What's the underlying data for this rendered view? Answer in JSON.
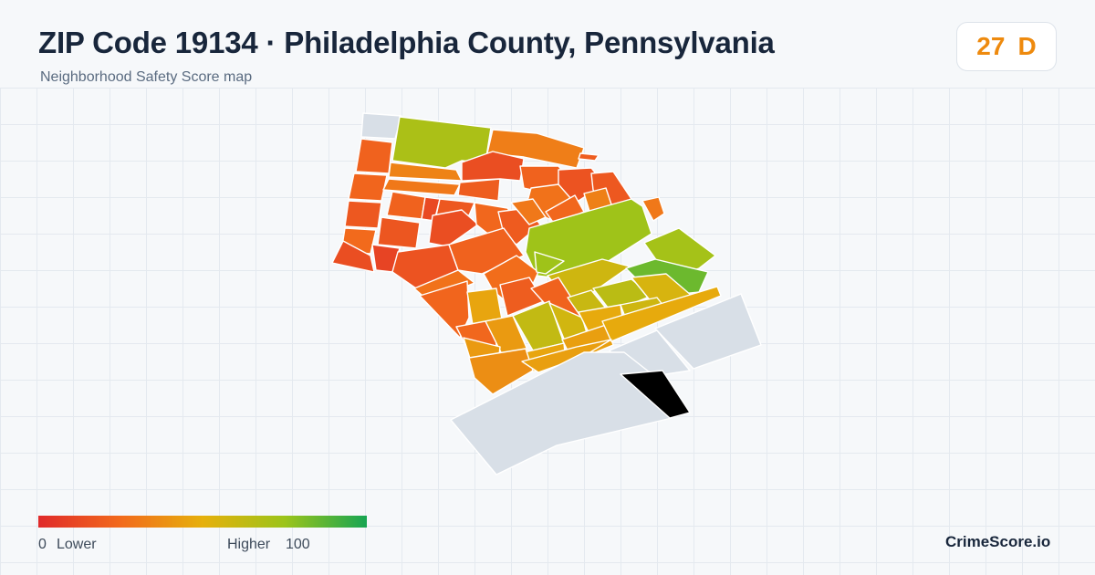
{
  "header": {
    "title": "ZIP Code 19134 · Philadelphia County, Pennsylvania",
    "subtitle": "Neighborhood Safety Score map"
  },
  "score": {
    "value": "27",
    "grade": "D",
    "color": "#ee8a0e"
  },
  "legend": {
    "min_value": "0",
    "min_label": "Lower",
    "max_label": "Higher",
    "max_value": "100",
    "color_stops": [
      "#e02a2a",
      "#f26a1c",
      "#e6b00c",
      "#9cc41a",
      "#17a552"
    ]
  },
  "brand": "CrimeScore.io",
  "map": {
    "no_data_color": "#d8dfe7",
    "tiles": [
      {
        "name": "n-outside-1",
        "score": null
      },
      {
        "name": "n-top-green",
        "score": 70
      },
      {
        "name": "n-top-right-orange",
        "score": 32
      },
      {
        "name": "n-top-right-sliver",
        "score": 20
      },
      {
        "name": "n-left-col-1",
        "score": 22
      },
      {
        "name": "n-left-col-2",
        "score": 23
      },
      {
        "name": "n-left-col-3",
        "score": 18
      },
      {
        "name": "n-left-col-4",
        "score": 25
      },
      {
        "name": "n-left-wedge",
        "score": 14
      },
      {
        "name": "n-top-strip-a",
        "score": 34
      },
      {
        "name": "n-top-strip-b",
        "score": 30
      },
      {
        "name": "n-r2-c1",
        "score": 22
      },
      {
        "name": "n-r2-c2",
        "score": 12
      },
      {
        "name": "n-r2-c3",
        "score": 18
      },
      {
        "name": "n-r2-c4",
        "score": 20
      },
      {
        "name": "n-r2-c5",
        "score": 14
      },
      {
        "name": "n-r2-c6",
        "score": 22
      },
      {
        "name": "n-r2-c7",
        "score": 16
      },
      {
        "name": "n-r2-c8",
        "score": 18
      },
      {
        "name": "n-r2-c9",
        "score": 28
      },
      {
        "name": "n-r3-c1",
        "score": 17
      },
      {
        "name": "n-r3-c2",
        "score": 10
      },
      {
        "name": "n-r3-c3",
        "score": 14
      },
      {
        "name": "n-r3-c4",
        "score": 24
      },
      {
        "name": "n-r3-c5",
        "score": 19
      },
      {
        "name": "n-r3-c6",
        "score": 30
      },
      {
        "name": "n-r3-c7",
        "score": 24
      },
      {
        "name": "n-r3-c8",
        "score": 33
      },
      {
        "name": "n-r3-c9",
        "score": 74
      },
      {
        "name": "n-right-orange",
        "score": 30
      },
      {
        "name": "n-right-green",
        "score": 72
      },
      {
        "name": "n-r4-c1",
        "score": 16
      },
      {
        "name": "n-r4-c2",
        "score": 22
      },
      {
        "name": "n-r4-c3",
        "score": 28
      },
      {
        "name": "n-r4-c4",
        "score": 26
      },
      {
        "name": "n-r4-c5",
        "score": 74
      },
      {
        "name": "n-r4-c6",
        "score": 58
      },
      {
        "name": "n-r4-c7",
        "score": 84
      },
      {
        "name": "n-r5-c1",
        "score": 23
      },
      {
        "name": "n-r5-c2",
        "score": 46
      },
      {
        "name": "n-r5-c3",
        "score": 20
      },
      {
        "name": "n-r5-c4",
        "score": 22
      },
      {
        "name": "n-r5-c5",
        "score": 60
      },
      {
        "name": "n-r5-c6",
        "score": 65
      },
      {
        "name": "n-r5-c7",
        "score": 55
      },
      {
        "name": "n-r6-c1",
        "score": 24
      },
      {
        "name": "n-r6-c2",
        "score": 42
      },
      {
        "name": "n-r6-c3",
        "score": 62
      },
      {
        "name": "n-r6-c4",
        "score": 57
      },
      {
        "name": "n-r6-c5",
        "score": 48
      },
      {
        "name": "n-r6-c6",
        "score": 58
      },
      {
        "name": "n-r7-c1",
        "score": 42
      },
      {
        "name": "n-r7-c2",
        "score": 46
      },
      {
        "name": "n-r7-c3",
        "score": 44
      },
      {
        "name": "n-r7-c4",
        "score": 48
      },
      {
        "name": "n-r8-c1",
        "score": 38
      },
      {
        "name": "n-r8-c2",
        "score": 44
      },
      {
        "name": "n-outside-2",
        "score": null
      },
      {
        "name": "n-outside-3",
        "score": null
      },
      {
        "name": "n-outside-4",
        "score": null
      }
    ]
  }
}
